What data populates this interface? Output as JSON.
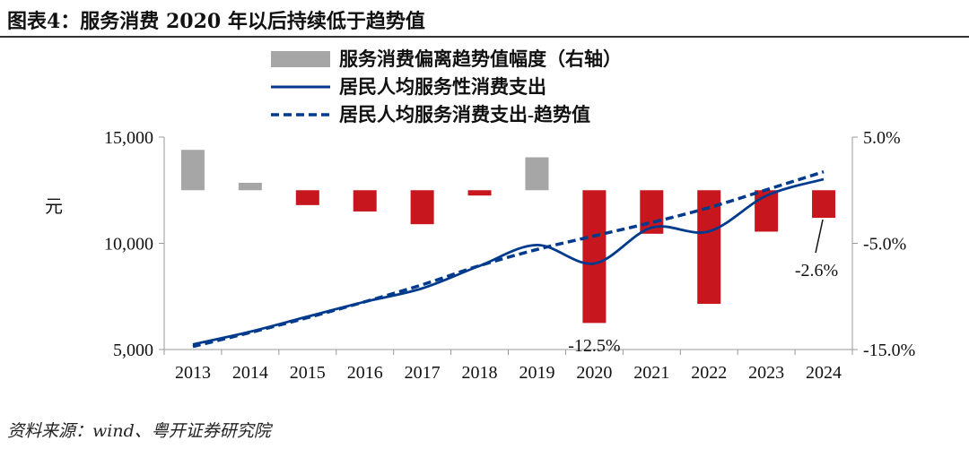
{
  "header": {
    "title": "图表4：服务消费 2020 年以后持续低于趋势值"
  },
  "footer": {
    "source": "资料来源：wind、粤开证券研究院"
  },
  "chart_data": {
    "type": "bar+line",
    "categories": [
      "2013",
      "2014",
      "2015",
      "2016",
      "2017",
      "2018",
      "2019",
      "2020",
      "2021",
      "2022",
      "2023",
      "2024"
    ],
    "left_axis": {
      "label": "元",
      "range": [
        5000,
        15000
      ],
      "ticks": [
        "5,000",
        "10,000",
        "15,000"
      ],
      "tick_values": [
        5000,
        10000,
        15000
      ]
    },
    "right_axis": {
      "range": [
        -15,
        5
      ],
      "ticks": [
        "-15.0%",
        "-5.0%",
        "5.0%"
      ],
      "tick_values": [
        -15,
        -5,
        5
      ]
    },
    "legend_position": "top",
    "colors": {
      "positive_bar": "#a6a6a6",
      "negative_bar": "#c8161e",
      "line": "#003a8c"
    },
    "series": [
      {
        "name": "服务消费偏离趋势值幅度（右轴）",
        "type": "bar",
        "axis": "right",
        "unit": "%",
        "values": [
          3.8,
          0.7,
          -1.4,
          -2.0,
          -3.2,
          -0.5,
          3.1,
          -12.5,
          -4.1,
          -10.7,
          -3.9,
          -2.6
        ]
      },
      {
        "name": "居民人均服务性消费支出",
        "type": "line",
        "axis": "left",
        "style": "solid",
        "values": [
          5240,
          5840,
          6550,
          7250,
          7880,
          8940,
          9920,
          9050,
          10740,
          10560,
          12240,
          13020
        ]
      },
      {
        "name": "居民人均服务消费支出-趋势值",
        "type": "line",
        "axis": "left",
        "style": "dashed",
        "values": [
          5140,
          5800,
          6500,
          7250,
          8050,
          8950,
          9710,
          10350,
          10980,
          11680,
          12520,
          13370
        ]
      }
    ],
    "annotations": [
      {
        "category": "2020",
        "text": "-12.5%"
      },
      {
        "category": "2024",
        "text": "-2.6%"
      }
    ],
    "grid": false
  }
}
